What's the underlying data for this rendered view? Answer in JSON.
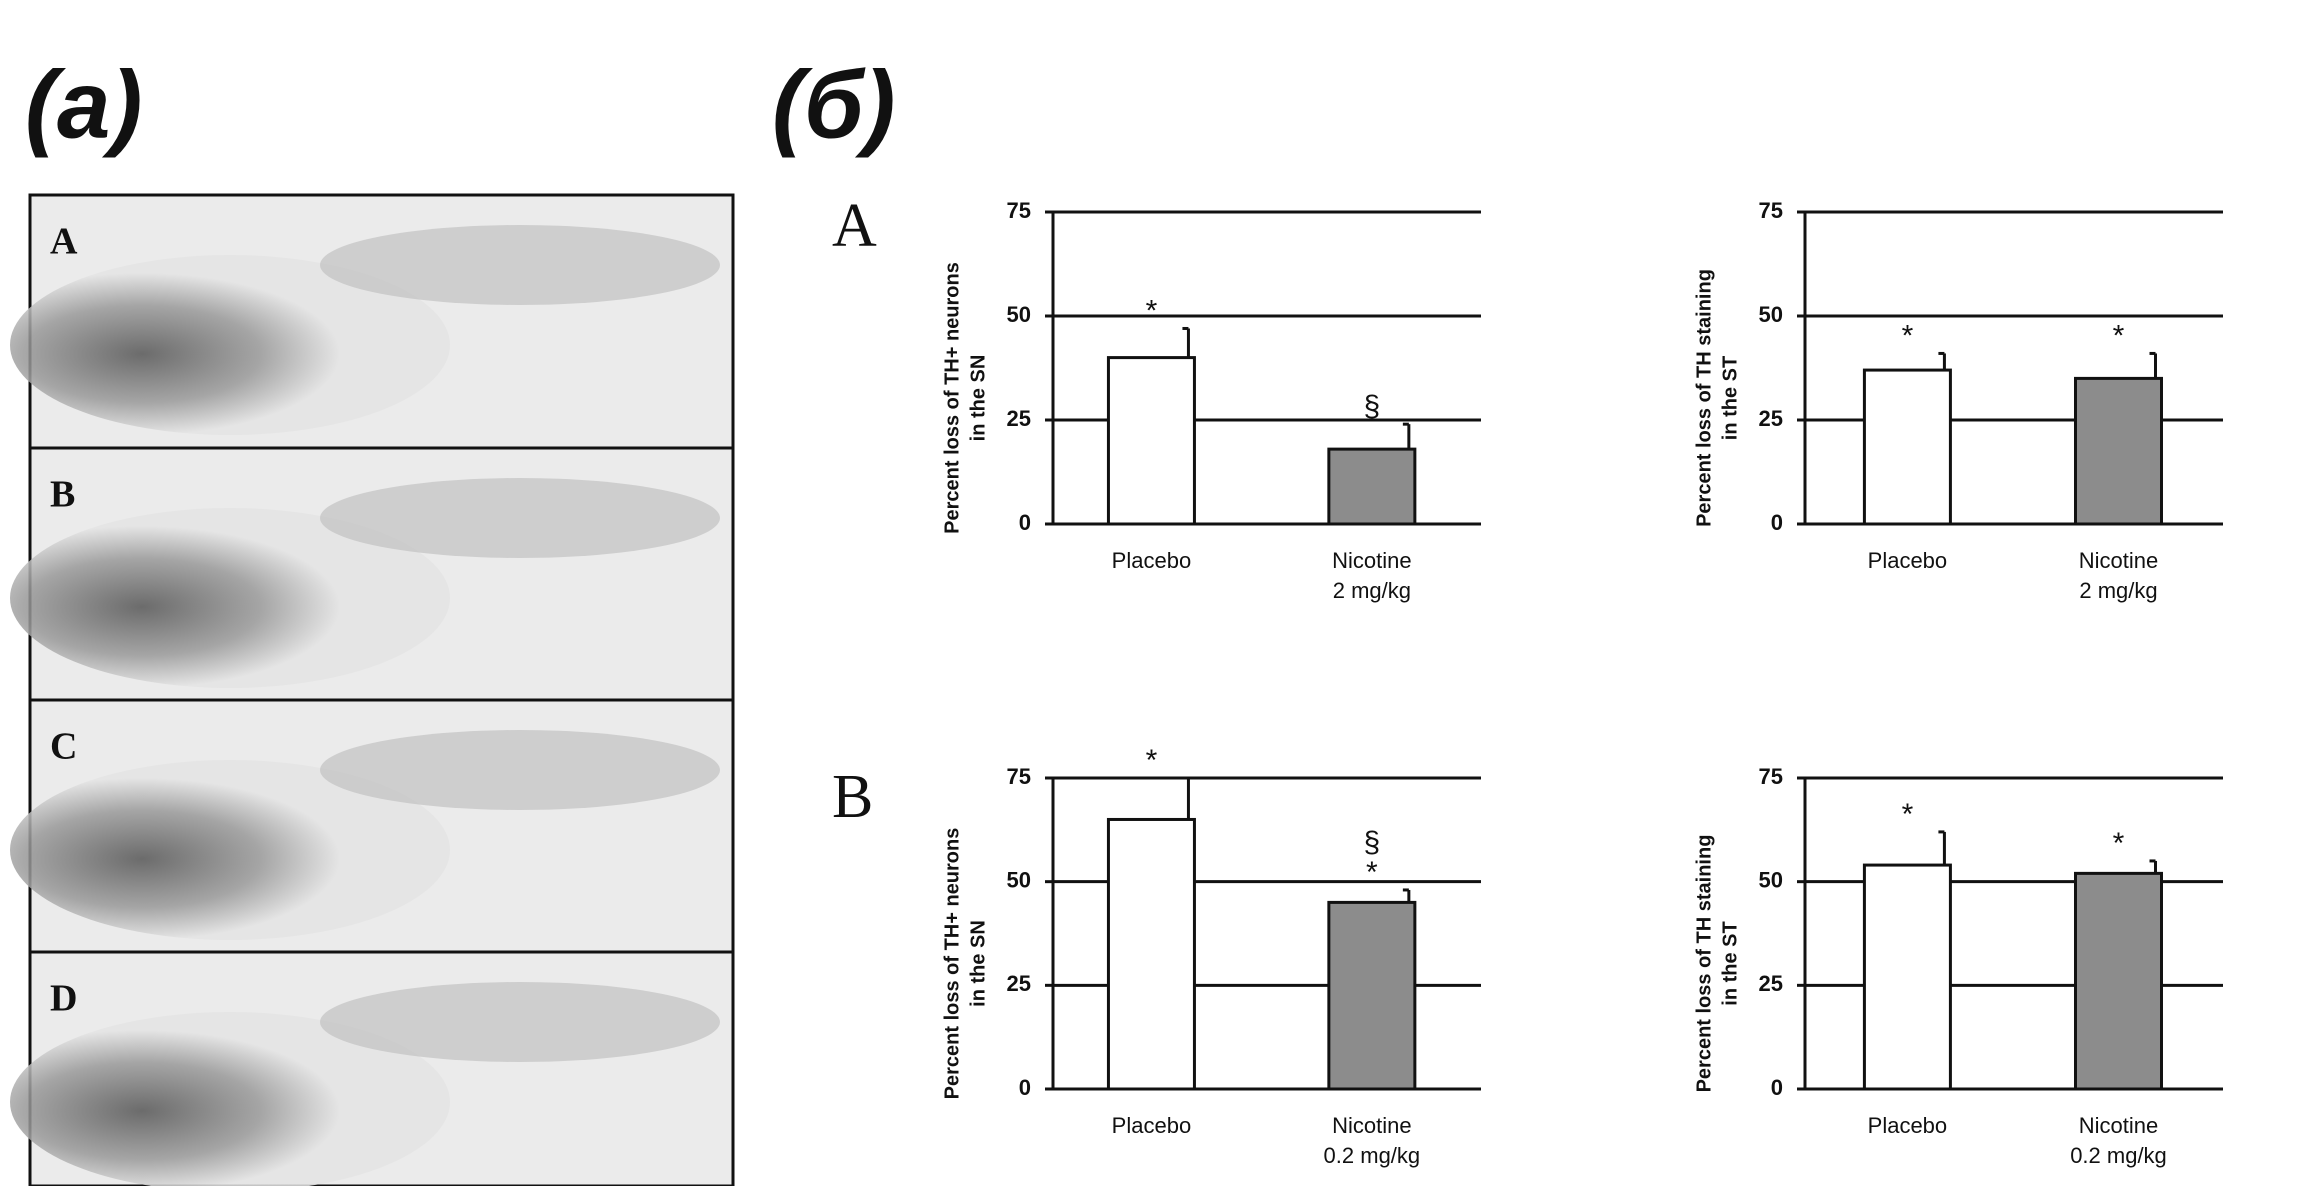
{
  "panel_labels": [
    "(a)",
    "(б)"
  ],
  "micrograph_labels": [
    "A",
    "B",
    "C",
    "D"
  ],
  "row_labels": [
    "A",
    "B"
  ],
  "chart_data": [
    {
      "type": "bar",
      "ylabel": [
        "Percent loss of TH+ neurons",
        "in the SN"
      ],
      "categories": [
        [
          "Placebo"
        ],
        [
          "Nicotine",
          "2 mg/kg"
        ]
      ],
      "values": [
        40,
        18
      ],
      "errors": [
        7,
        6
      ],
      "colors": [
        "#ffffff",
        "#8c8c8c"
      ],
      "annotations": [
        [
          "*"
        ],
        [
          "§"
        ]
      ],
      "ylim": [
        0,
        75
      ],
      "yticks": [
        0,
        25,
        50,
        75
      ],
      "grid": true
    },
    {
      "type": "bar",
      "ylabel": [
        "Percent loss of TH staining",
        "in the ST"
      ],
      "categories": [
        [
          "Placebo"
        ],
        [
          "Nicotine",
          "2 mg/kg"
        ]
      ],
      "values": [
        37,
        35
      ],
      "errors": [
        4,
        6
      ],
      "colors": [
        "#ffffff",
        "#8c8c8c"
      ],
      "annotations": [
        [
          "*"
        ],
        [
          "*"
        ]
      ],
      "ylim": [
        0,
        75
      ],
      "yticks": [
        0,
        25,
        50,
        75
      ],
      "grid": true
    },
    {
      "type": "bar",
      "ylabel": [
        "Percent loss of TH+ neurons",
        "in the SN"
      ],
      "categories": [
        [
          "Placebo"
        ],
        [
          "Nicotine",
          "0.2 mg/kg"
        ]
      ],
      "values": [
        65,
        45
      ],
      "errors": [
        10,
        3
      ],
      "colors": [
        "#ffffff",
        "#8c8c8c"
      ],
      "annotations": [
        [
          "*"
        ],
        [
          "§",
          "*"
        ]
      ],
      "ylim": [
        0,
        75
      ],
      "yticks": [
        0,
        25,
        50,
        75
      ],
      "grid": true
    },
    {
      "type": "bar",
      "ylabel": [
        "Percent loss of TH staining",
        "in the ST"
      ],
      "categories": [
        [
          "Placebo"
        ],
        [
          "Nicotine",
          "0.2 mg/kg"
        ]
      ],
      "values": [
        54,
        52
      ],
      "errors": [
        8,
        3
      ],
      "colors": [
        "#ffffff",
        "#8c8c8c"
      ],
      "annotations": [
        [
          "*"
        ],
        [
          "*"
        ]
      ],
      "ylim": [
        0,
        75
      ],
      "yticks": [
        0,
        25,
        50,
        75
      ],
      "grid": true
    }
  ]
}
